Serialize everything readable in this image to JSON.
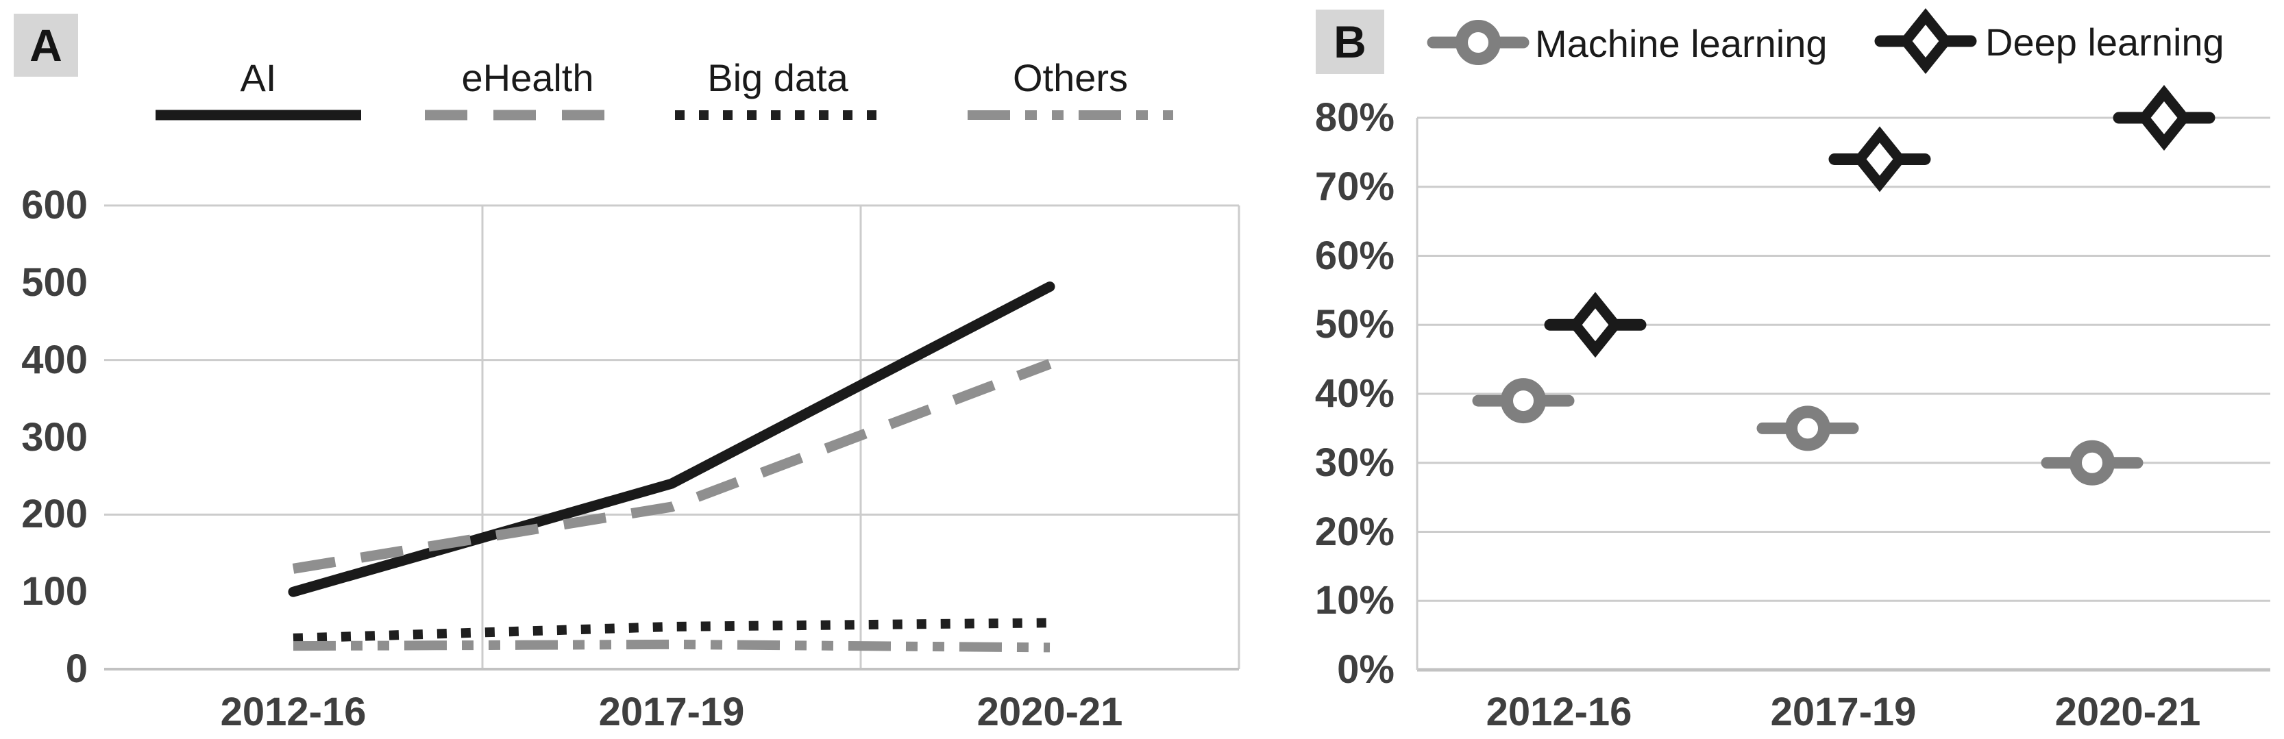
{
  "figure": {
    "background": "#ffffff",
    "panel_a_label": "A",
    "panel_b_label": "B"
  },
  "chart_data": [
    {
      "type": "line",
      "panel_label": "A",
      "categories": [
        "2012-16",
        "2017-19",
        "2020-21"
      ],
      "series": [
        {
          "name": "AI",
          "values": [
            100,
            240,
            495
          ],
          "color": "#1a1a1a",
          "line_style": "solid"
        },
        {
          "name": "eHealth",
          "values": [
            130,
            210,
            395
          ],
          "color": "#8f8f8f",
          "line_style": "long-dash"
        },
        {
          "name": "Big data",
          "values": [
            40,
            55,
            60
          ],
          "color": "#1f1f1f",
          "line_style": "dotted"
        },
        {
          "name": "Others",
          "values": [
            30,
            32,
            28
          ],
          "color": "#8f8f8f",
          "line_style": "dash-dot-dot"
        }
      ],
      "ylim": [
        0,
        600
      ],
      "yticks": [
        "0",
        "100",
        "200",
        "300",
        "400",
        "500",
        "600"
      ],
      "grid": {
        "horizontal_at": [
          200,
          400,
          600
        ],
        "vertical_at_category_boundaries": true
      },
      "legend_position": "top",
      "gridline_color": "#cccccc",
      "axis_color": "#c2c2c2",
      "tick_color": "#3f3f3f"
    },
    {
      "type": "scatter",
      "panel_label": "B",
      "categories": [
        "2012-16",
        "2017-19",
        "2020-21"
      ],
      "unit": "%",
      "series": [
        {
          "name": "Machine learning",
          "values": [
            39,
            35,
            30
          ],
          "color": "#7f7f7f",
          "marker": "open-circle"
        },
        {
          "name": "Deep learning",
          "values": [
            50,
            74,
            80
          ],
          "color": "#1a1a1a",
          "marker": "open-diamond"
        }
      ],
      "ylim": [
        0,
        80
      ],
      "yticks": [
        "0%",
        "10%",
        "20%",
        "30%",
        "40%",
        "50%",
        "60%",
        "70%",
        "80%"
      ],
      "grid": {
        "horizontal_every": 10
      },
      "legend_position": "top",
      "gridline_color": "#cccccc",
      "axis_color": "#c2c2c2",
      "tick_color": "#3f3f3f"
    }
  ]
}
